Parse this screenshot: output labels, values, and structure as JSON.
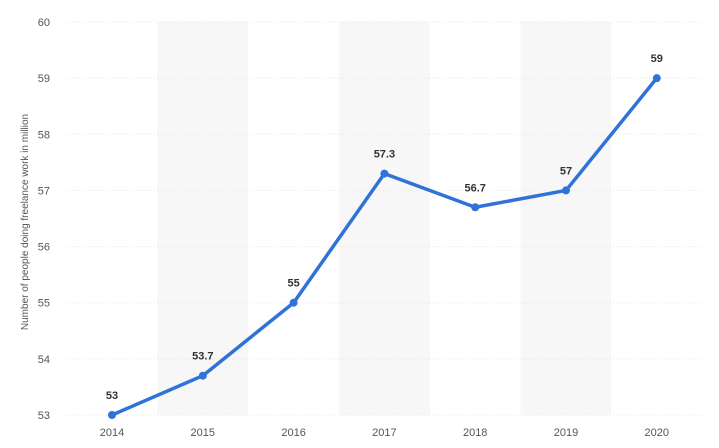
{
  "chart_data": {
    "type": "line",
    "title": "",
    "xlabel": "",
    "ylabel": "Number of people doing freelance work in million",
    "categories": [
      "2014",
      "2015",
      "2016",
      "2017",
      "2018",
      "2019",
      "2020"
    ],
    "series": [
      {
        "values": [
          53,
          53.7,
          55,
          57.3,
          56.7,
          57,
          59
        ],
        "color": "#2f72d8"
      }
    ],
    "data_labels": [
      "53",
      "53.7",
      "55",
      "57.3",
      "56.7",
      "57",
      "59"
    ],
    "ylim": [
      53,
      60
    ],
    "yticks": [
      "53",
      "54",
      "55",
      "56",
      "57",
      "58",
      "59",
      "60"
    ],
    "grid": true,
    "legend": "none",
    "colors": {
      "line": "#2f72d8",
      "band": "#f7f7f7",
      "grid": "#e6e6e6",
      "tick_text": "#555555",
      "label_text": "#333333"
    }
  }
}
